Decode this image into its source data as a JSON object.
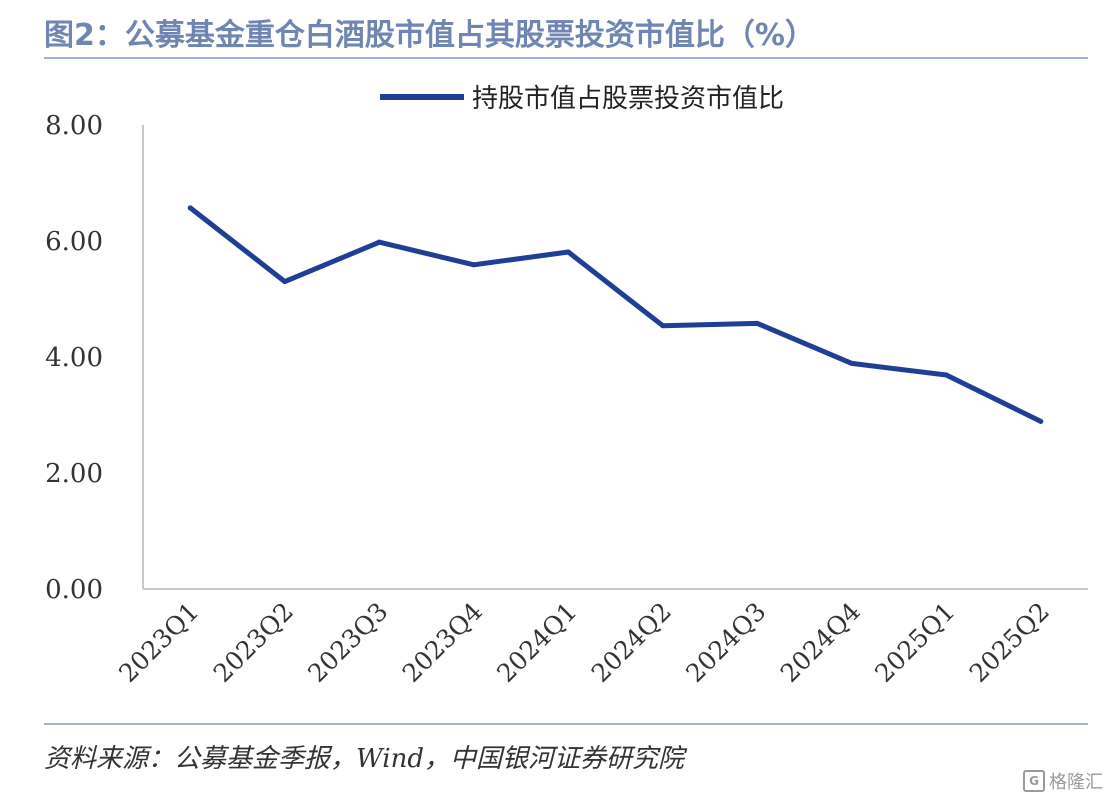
{
  "title": "图2：公募基金重仓白酒股市值占其股票投资市值比（%）",
  "source": "资料来源：公募基金季报，Wind，中国银河证券研究院",
  "watermark": {
    "text": "格隆汇",
    "icon": "gelonghui-logo-icon"
  },
  "colors": {
    "line": "#1f3e96",
    "title": "#6f86b2",
    "rule": "#9fb3d3",
    "axis": "#c8c8c8"
  },
  "chart_data": {
    "type": "line",
    "title": "图2：公募基金重仓白酒股市值占其股票投资市值比（%）",
    "categories": [
      "2023Q1",
      "2023Q2",
      "2023Q3",
      "2023Q4",
      "2024Q1",
      "2024Q2",
      "2024Q3",
      "2024Q4",
      "2025Q1",
      "2025Q2"
    ],
    "series": [
      {
        "name": "持股市值占股票投资市值比",
        "values": [
          6.57,
          5.3,
          5.98,
          5.59,
          5.81,
          4.54,
          4.58,
          3.89,
          3.69,
          2.89
        ]
      }
    ],
    "yticks": [
      "0.00",
      "2.00",
      "4.00",
      "6.00",
      "8.00"
    ],
    "ylim": [
      0,
      8
    ],
    "grid": false,
    "legend": "top-center",
    "xlabel": "",
    "ylabel": ""
  }
}
